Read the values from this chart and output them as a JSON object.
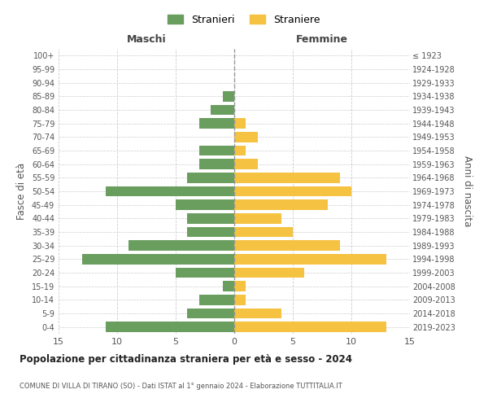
{
  "age_groups": [
    "0-4",
    "5-9",
    "10-14",
    "15-19",
    "20-24",
    "25-29",
    "30-34",
    "35-39",
    "40-44",
    "45-49",
    "50-54",
    "55-59",
    "60-64",
    "65-69",
    "70-74",
    "75-79",
    "80-84",
    "85-89",
    "90-94",
    "95-99",
    "100+"
  ],
  "birth_years": [
    "2019-2023",
    "2014-2018",
    "2009-2013",
    "2004-2008",
    "1999-2003",
    "1994-1998",
    "1989-1993",
    "1984-1988",
    "1979-1983",
    "1974-1978",
    "1969-1973",
    "1964-1968",
    "1959-1963",
    "1954-1958",
    "1949-1953",
    "1944-1948",
    "1939-1943",
    "1934-1938",
    "1929-1933",
    "1924-1928",
    "≤ 1923"
  ],
  "males": [
    11,
    4,
    3,
    1,
    5,
    13,
    9,
    4,
    4,
    5,
    11,
    4,
    3,
    3,
    0,
    3,
    2,
    1,
    0,
    0,
    0
  ],
  "females": [
    13,
    4,
    1,
    1,
    6,
    13,
    9,
    5,
    4,
    8,
    10,
    9,
    2,
    1,
    2,
    1,
    0,
    0,
    0,
    0,
    0
  ],
  "male_color": "#6a9e5f",
  "female_color": "#f5c242",
  "title": "Popolazione per cittadinanza straniera per età e sesso - 2024",
  "subtitle": "COMUNE DI VILLA DI TIRANO (SO) - Dati ISTAT al 1° gennaio 2024 - Elaborazione TUTTITALIA.IT",
  "xlabel_left": "Maschi",
  "xlabel_right": "Femmine",
  "ylabel_left": "Fasce di età",
  "ylabel_right": "Anni di nascita",
  "legend_male": "Stranieri",
  "legend_female": "Straniere",
  "xlim": 15,
  "background_color": "#ffffff",
  "grid_color": "#cccccc"
}
